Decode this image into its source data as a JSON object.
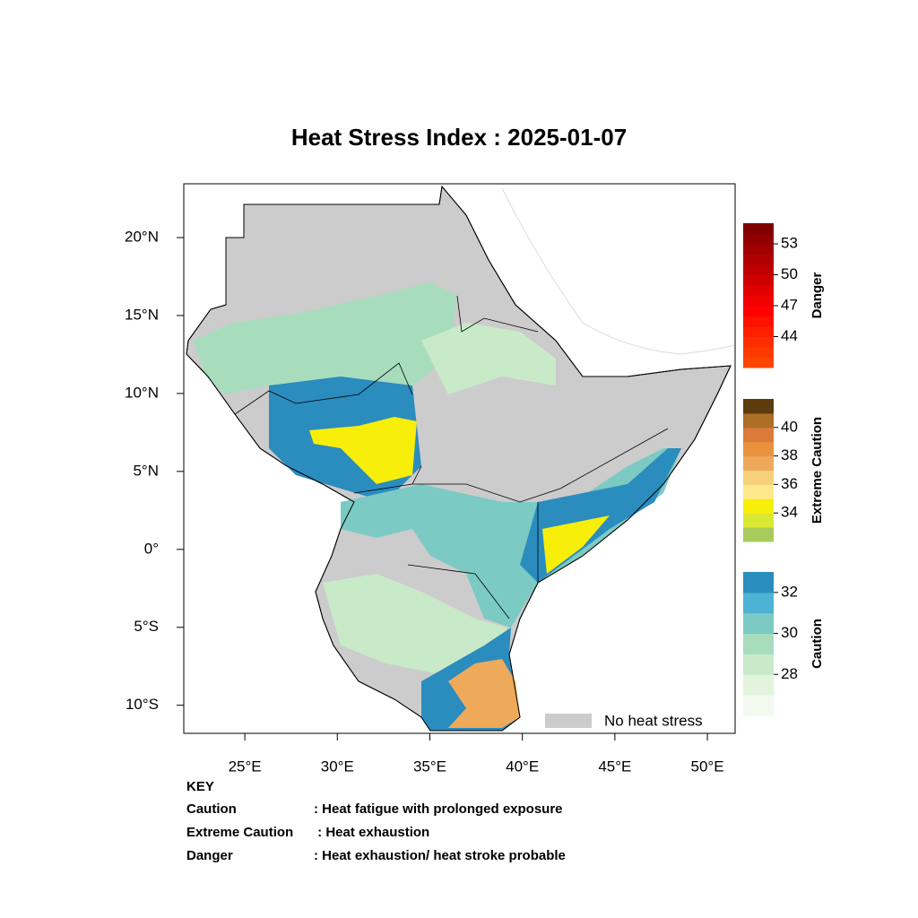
{
  "title": "Heat Stress Index : 2025-01-07",
  "map": {
    "xlim": [
      21.7,
      51.5
    ],
    "ylim": [
      -11.8,
      23.45
    ],
    "xticks": [
      {
        "value": 25,
        "label": "25°E"
      },
      {
        "value": 30,
        "label": "30°E"
      },
      {
        "value": 35,
        "label": "35°E"
      },
      {
        "value": 40,
        "label": "40°E"
      },
      {
        "value": 45,
        "label": "45°E"
      },
      {
        "value": 50,
        "label": "50°E"
      }
    ],
    "yticks": [
      {
        "value": 20,
        "label": "20°N"
      },
      {
        "value": 15,
        "label": "15°N"
      },
      {
        "value": 10,
        "label": "10°N"
      },
      {
        "value": 5,
        "label": "5°N"
      },
      {
        "value": 0,
        "label": "0°"
      },
      {
        "value": -5,
        "label": "5°S"
      },
      {
        "value": -10,
        "label": "10°S"
      }
    ]
  },
  "colorbars": [
    {
      "label": "Danger",
      "lim": [
        41,
        55
      ],
      "ticks": [
        44,
        47,
        50,
        53
      ],
      "colors": [
        "#ff4500",
        "#ff3a00",
        "#ff2e00",
        "#ff2000",
        "#ff1000",
        "#ff0000",
        "#f00000",
        "#e00000",
        "#d00000",
        "#c00000",
        "#b00000",
        "#a00000",
        "#900000",
        "#800000"
      ]
    },
    {
      "label": "Extreme Caution",
      "lim": [
        32,
        42
      ],
      "ticks": [
        34,
        36,
        38,
        40
      ],
      "colors": [
        "#a8cc5c",
        "#dbe832",
        "#f7ee0a",
        "#fde98a",
        "#f6d07c",
        "#eeaa5a",
        "#e8923e",
        "#dc7a3a",
        "#ad6e26",
        "#5c3b0c"
      ]
    },
    {
      "label": "Caution",
      "lim": [
        26,
        33
      ],
      "ticks": [
        28,
        30,
        32
      ],
      "colors": [
        "#f2f9ee",
        "#e2f4de",
        "#c9eac9",
        "#a7ddbd",
        "#7ccac4",
        "#4eb2d4",
        "#2b8cbe"
      ]
    }
  ],
  "legend": {
    "label": "No heat stress",
    "color": "#cccccc"
  },
  "key": {
    "title": "KEY",
    "rows": [
      [
        "Caution",
        ": Heat fatigue with prolonged exposure"
      ],
      [
        "Extreme Caution",
        " : Heat exhaustion"
      ],
      [
        "Danger",
        ": Heat exhaustion/ heat stroke probable"
      ]
    ]
  }
}
